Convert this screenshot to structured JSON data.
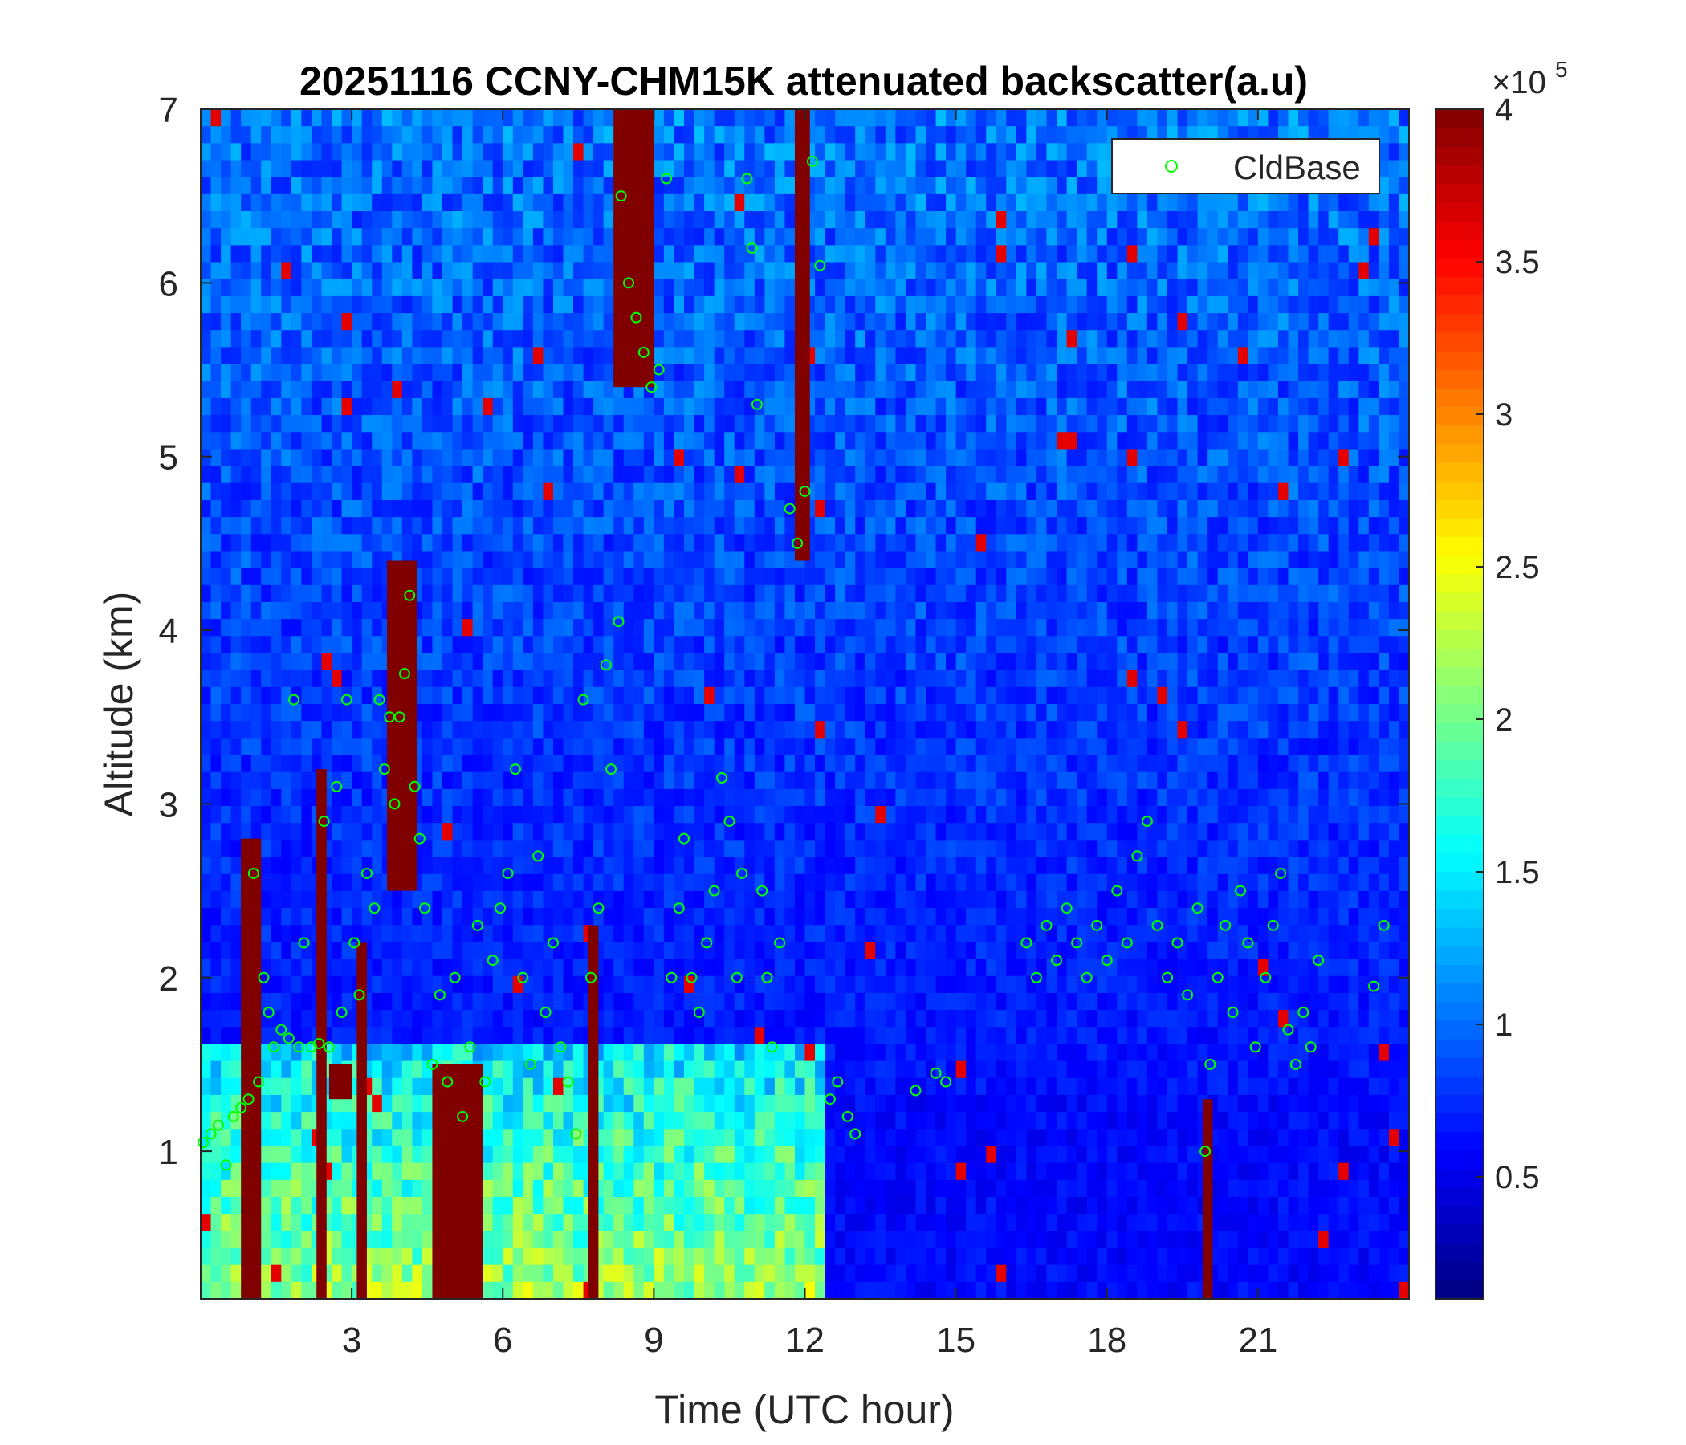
{
  "chart_data": {
    "type": "heatmap",
    "title": "20251116 CCNY-CHM15K attenuated backscatter(a.u)",
    "xlabel": "Time (UTC hour)",
    "ylabel": "Altitude (km)",
    "xlim": [
      0,
      24
    ],
    "ylim": [
      0.15,
      7
    ],
    "xticks": [
      3,
      6,
      9,
      12,
      15,
      18,
      21
    ],
    "xtick_labels": [
      "3",
      "6",
      "9",
      "12",
      "15",
      "18",
      "21"
    ],
    "yticks": [
      1,
      2,
      3,
      4,
      5,
      6,
      7
    ],
    "ytick_labels": [
      "1",
      "2",
      "3",
      "4",
      "5",
      "6",
      "7"
    ],
    "colormap": "jet",
    "colorbar": {
      "range": [
        10000,
        400000
      ],
      "ticks": [
        0.5,
        1,
        1.5,
        2,
        2.5,
        3,
        3.5,
        4
      ],
      "tick_labels": [
        "0.5",
        "1",
        "1.5",
        "2",
        "2.5",
        "3",
        "3.5",
        "4"
      ],
      "multiplier_base": "×10",
      "multiplier_exponent": "5"
    },
    "legend": {
      "position": "top-right",
      "entries": [
        "CldBase"
      ]
    },
    "grid": false,
    "series": [
      {
        "name": "CldBase",
        "marker": "circle",
        "color": "#00ff00",
        "points": [
          [
            0.05,
            1.05
          ],
          [
            0.2,
            1.1
          ],
          [
            0.35,
            1.15
          ],
          [
            0.5,
            0.92
          ],
          [
            0.65,
            1.2
          ],
          [
            0.8,
            1.25
          ],
          [
            0.95,
            1.3
          ],
          [
            1.05,
            2.6
          ],
          [
            1.15,
            1.4
          ],
          [
            1.25,
            2.0
          ],
          [
            1.35,
            1.8
          ],
          [
            1.45,
            1.6
          ],
          [
            1.6,
            1.7
          ],
          [
            1.75,
            1.65
          ],
          [
            1.85,
            3.6
          ],
          [
            1.95,
            1.6
          ],
          [
            2.05,
            2.2
          ],
          [
            2.2,
            1.6
          ],
          [
            2.35,
            1.62
          ],
          [
            2.45,
            2.9
          ],
          [
            2.55,
            1.6
          ],
          [
            2.7,
            3.1
          ],
          [
            2.8,
            1.8
          ],
          [
            2.9,
            3.6
          ],
          [
            3.05,
            2.2
          ],
          [
            3.15,
            1.9
          ],
          [
            3.3,
            2.6
          ],
          [
            3.45,
            2.4
          ],
          [
            3.55,
            3.6
          ],
          [
            3.65,
            3.2
          ],
          [
            3.75,
            3.5
          ],
          [
            3.85,
            3.0
          ],
          [
            3.95,
            3.5
          ],
          [
            4.05,
            3.75
          ],
          [
            4.15,
            4.2
          ],
          [
            4.25,
            3.1
          ],
          [
            4.35,
            2.8
          ],
          [
            4.45,
            2.4
          ],
          [
            4.6,
            1.5
          ],
          [
            4.75,
            1.9
          ],
          [
            4.9,
            1.4
          ],
          [
            5.05,
            2.0
          ],
          [
            5.2,
            1.2
          ],
          [
            5.35,
            1.6
          ],
          [
            5.5,
            2.3
          ],
          [
            5.65,
            1.4
          ],
          [
            5.8,
            2.1
          ],
          [
            5.95,
            2.4
          ],
          [
            6.1,
            2.6
          ],
          [
            6.25,
            3.2
          ],
          [
            6.4,
            2.0
          ],
          [
            6.55,
            1.5
          ],
          [
            6.7,
            2.7
          ],
          [
            6.85,
            1.8
          ],
          [
            7.0,
            2.2
          ],
          [
            7.15,
            1.6
          ],
          [
            7.3,
            1.4
          ],
          [
            7.45,
            1.1
          ],
          [
            7.6,
            3.6
          ],
          [
            7.75,
            2.0
          ],
          [
            7.9,
            2.4
          ],
          [
            8.05,
            3.8
          ],
          [
            8.15,
            3.2
          ],
          [
            8.3,
            4.05
          ],
          [
            8.35,
            6.5
          ],
          [
            8.5,
            6.0
          ],
          [
            8.65,
            5.8
          ],
          [
            8.8,
            5.6
          ],
          [
            8.95,
            5.4
          ],
          [
            9.1,
            5.5
          ],
          [
            9.25,
            6.6
          ],
          [
            9.35,
            2.0
          ],
          [
            9.5,
            2.4
          ],
          [
            9.6,
            2.8
          ],
          [
            9.75,
            2.0
          ],
          [
            9.9,
            1.8
          ],
          [
            10.05,
            2.2
          ],
          [
            10.2,
            2.5
          ],
          [
            10.35,
            3.15
          ],
          [
            10.5,
            2.9
          ],
          [
            10.65,
            2.0
          ],
          [
            10.75,
            2.6
          ],
          [
            10.85,
            6.6
          ],
          [
            10.95,
            6.2
          ],
          [
            11.05,
            5.3
          ],
          [
            11.15,
            2.5
          ],
          [
            11.25,
            2.0
          ],
          [
            11.35,
            1.6
          ],
          [
            11.5,
            2.2
          ],
          [
            11.7,
            4.7
          ],
          [
            11.85,
            4.5
          ],
          [
            12.0,
            4.8
          ],
          [
            12.15,
            6.7
          ],
          [
            12.3,
            6.1
          ],
          [
            12.5,
            1.3
          ],
          [
            12.65,
            1.4
          ],
          [
            12.85,
            1.2
          ],
          [
            13.0,
            1.1
          ],
          [
            14.2,
            1.35
          ],
          [
            14.6,
            1.45
          ],
          [
            14.8,
            1.4
          ],
          [
            16.4,
            2.2
          ],
          [
            16.6,
            2.0
          ],
          [
            16.8,
            2.3
          ],
          [
            17.0,
            2.1
          ],
          [
            17.2,
            2.4
          ],
          [
            17.4,
            2.2
          ],
          [
            17.6,
            2.0
          ],
          [
            17.8,
            2.3
          ],
          [
            18.0,
            2.1
          ],
          [
            18.2,
            2.5
          ],
          [
            18.4,
            2.2
          ],
          [
            18.6,
            2.7
          ],
          [
            18.8,
            2.9
          ],
          [
            19.0,
            2.3
          ],
          [
            19.2,
            2.0
          ],
          [
            19.4,
            2.2
          ],
          [
            19.6,
            1.9
          ],
          [
            19.8,
            2.4
          ],
          [
            19.95,
            1.0
          ],
          [
            20.05,
            1.5
          ],
          [
            20.2,
            2.0
          ],
          [
            20.35,
            2.3
          ],
          [
            20.5,
            1.8
          ],
          [
            20.65,
            2.5
          ],
          [
            20.8,
            2.2
          ],
          [
            20.95,
            1.6
          ],
          [
            21.15,
            2.0
          ],
          [
            21.3,
            2.3
          ],
          [
            21.45,
            2.6
          ],
          [
            21.6,
            1.7
          ],
          [
            21.75,
            1.5
          ],
          [
            21.9,
            1.8
          ],
          [
            22.05,
            1.6
          ],
          [
            22.2,
            2.1
          ],
          [
            23.3,
            1.95
          ],
          [
            23.5,
            2.3
          ]
        ]
      }
    ],
    "field_features": [
      {
        "t0": 0.8,
        "t1": 1.2,
        "z0": 0.15,
        "z1": 2.8,
        "kind": "cloud"
      },
      {
        "t0": 2.3,
        "t1": 2.5,
        "z0": 0.15,
        "z1": 3.2,
        "kind": "cloud"
      },
      {
        "t0": 2.55,
        "t1": 3.0,
        "z0": 1.3,
        "z1": 1.5,
        "kind": "cloud"
      },
      {
        "t0": 3.1,
        "t1": 3.3,
        "z0": 0.15,
        "z1": 2.2,
        "kind": "cloud"
      },
      {
        "t0": 3.7,
        "t1": 4.3,
        "z0": 2.5,
        "z1": 4.4,
        "kind": "cloud"
      },
      {
        "t0": 4.6,
        "t1": 5.6,
        "z0": 0.15,
        "z1": 1.5,
        "kind": "cloud"
      },
      {
        "t0": 7.7,
        "t1": 7.9,
        "z0": 0.15,
        "z1": 2.3,
        "kind": "cloud"
      },
      {
        "t0": 8.2,
        "t1": 9.0,
        "z0": 5.4,
        "z1": 7.0,
        "kind": "cloud"
      },
      {
        "t0": 11.8,
        "t1": 12.1,
        "z0": 4.4,
        "z1": 7.0,
        "kind": "cloud"
      },
      {
        "t0": 19.9,
        "t1": 20.1,
        "z0": 0.15,
        "z1": 1.3,
        "kind": "cloud"
      }
    ]
  }
}
